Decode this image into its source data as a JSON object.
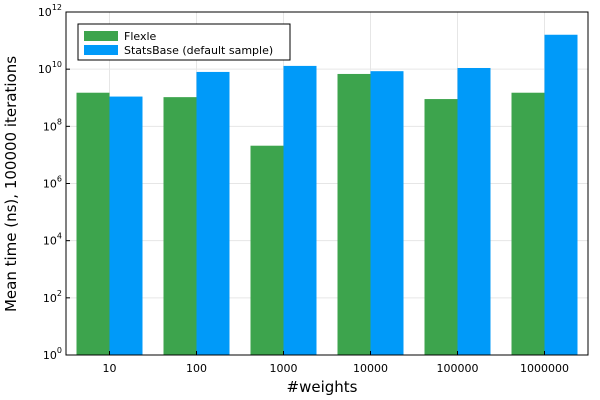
{
  "chart_data": {
    "type": "bar",
    "xlabel": "#weights",
    "ylabel": "Mean time (ns), 100000 iterations",
    "yscale": "log10",
    "ylim": [
      1,
      1000000000000
    ],
    "y_ticks": [
      {
        "base": "10",
        "exp": "0"
      },
      {
        "base": "10",
        "exp": "2"
      },
      {
        "base": "10",
        "exp": "4"
      },
      {
        "base": "10",
        "exp": "6"
      },
      {
        "base": "10",
        "exp": "8"
      },
      {
        "base": "10",
        "exp": "10"
      },
      {
        "base": "10",
        "exp": "12"
      }
    ],
    "categories": [
      "10",
      "100",
      "1000",
      "10000",
      "100000",
      "1000000"
    ],
    "grid": true,
    "legend_position": "top-left",
    "series": [
      {
        "name": "Flexle",
        "color": "#3da44d",
        "values": [
          1500000000,
          1050000000,
          21000000,
          6800000000,
          900000000,
          1500000000
        ]
      },
      {
        "name": "StatsBase (default sample)",
        "color": "#009af9",
        "values": [
          1100000000,
          8000000000,
          13000000000,
          8500000000,
          11000000000,
          160000000000
        ]
      }
    ]
  }
}
